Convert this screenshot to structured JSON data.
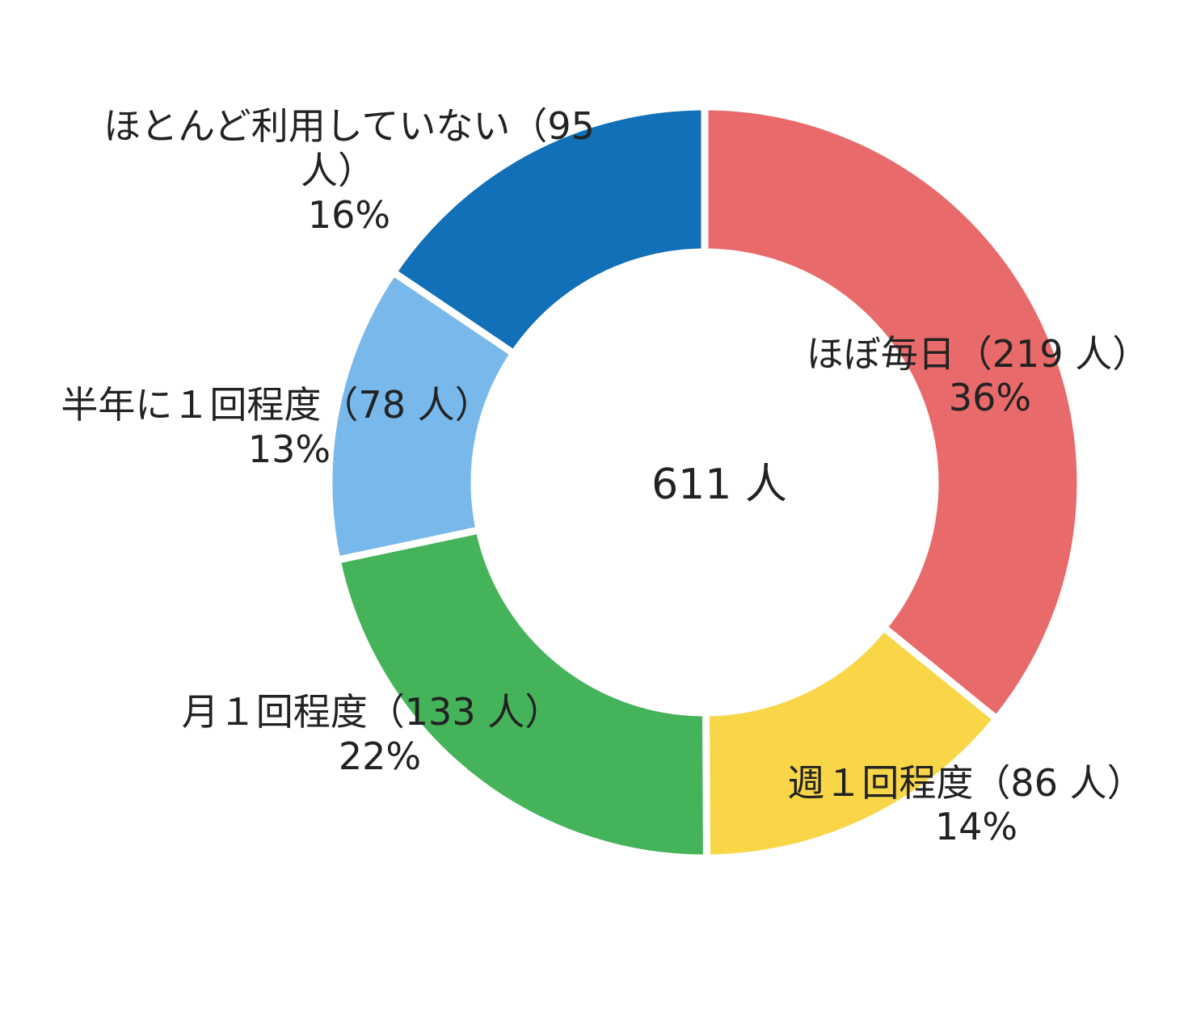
{
  "chart_data": {
    "type": "pie",
    "variant": "donut",
    "center_label": "611 人",
    "series": [
      {
        "category": "ほぼ毎日",
        "count": 219,
        "count_label": "（219 人）",
        "percent_label": "36%",
        "color": "#E86A6A"
      },
      {
        "category": "週１回程度",
        "count": 86,
        "count_label": "（86 人）",
        "percent_label": "14%",
        "color": "#F8D648"
      },
      {
        "category": "月１回程度",
        "count": 133,
        "count_label": "（133 人）",
        "percent_label": "22%",
        "color": "#45B35A"
      },
      {
        "category": "半年に１回程度",
        "count": 78,
        "count_label": "（78 人）",
        "percent_label": "13%",
        "color": "#79B8EA"
      },
      {
        "category": "ほとんど利用していない",
        "count": 95,
        "count_label": "（95",
        "count_label_2": "人）",
        "percent_label": "16%",
        "color": "#1170B8"
      }
    ]
  }
}
